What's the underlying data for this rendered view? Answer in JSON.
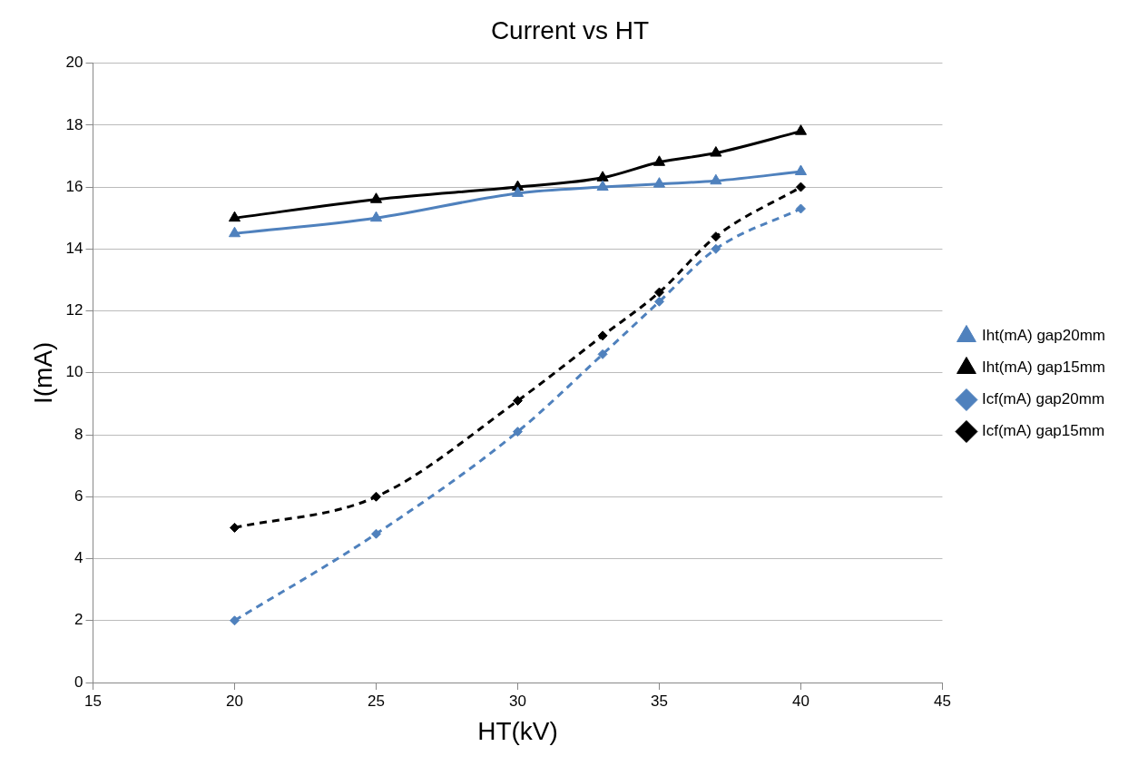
{
  "chart_data": {
    "type": "line",
    "title": "Current vs HT",
    "xlabel": "HT(kV)",
    "ylabel": "I(mA)",
    "x": [
      20,
      25,
      30,
      33,
      35,
      37,
      40
    ],
    "series": [
      {
        "name": "Iht(mA) gap20mm",
        "color": "#4f81bd",
        "marker": "triangle",
        "line_style": "solid",
        "values": [
          14.5,
          15.0,
          15.8,
          16.0,
          16.1,
          16.2,
          16.5
        ]
      },
      {
        "name": "Iht(mA) gap15mm",
        "color": "#000000",
        "marker": "triangle",
        "line_style": "solid",
        "values": [
          15.0,
          15.6,
          16.0,
          16.3,
          16.8,
          17.1,
          17.8
        ]
      },
      {
        "name": "Icf(mA) gap20mm",
        "color": "#4f81bd",
        "marker": "diamond",
        "line_style": "dashed",
        "values": [
          2.0,
          4.8,
          8.1,
          10.6,
          12.3,
          14.0,
          15.3
        ]
      },
      {
        "name": "Icf(mA) gap15mm",
        "color": "#000000",
        "marker": "diamond",
        "line_style": "dashed",
        "values": [
          5.0,
          6.0,
          9.1,
          11.2,
          12.6,
          14.4,
          16.0
        ]
      }
    ],
    "xlim": [
      15,
      45
    ],
    "xticks": [
      15,
      20,
      25,
      30,
      35,
      40,
      45
    ],
    "ylim": [
      0,
      20
    ],
    "yticks": [
      0,
      2,
      4,
      6,
      8,
      10,
      12,
      14,
      16,
      18,
      20
    ],
    "grid": "y",
    "legend": "right"
  }
}
